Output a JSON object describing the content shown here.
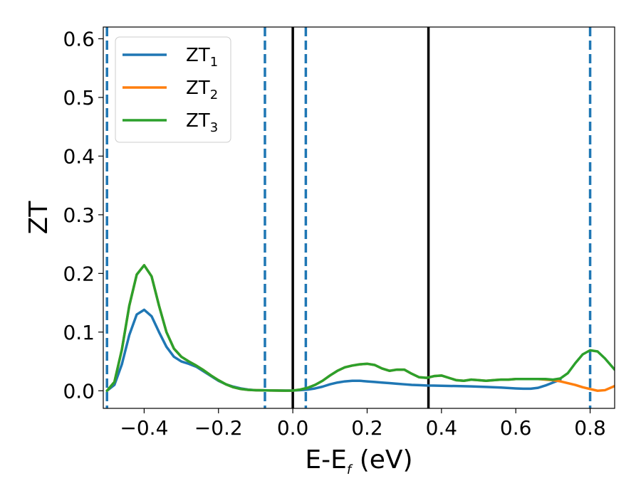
{
  "chart_data": {
    "type": "line",
    "xlabel_main": "E-E",
    "xlabel_sub": "f",
    "xlabel_unit": " (eV)",
    "ylabel": "ZT",
    "xlim": [
      -0.51,
      0.866
    ],
    "ylim": [
      -0.03,
      0.62
    ],
    "x_ticks": [
      -0.4,
      -0.2,
      0.0,
      0.2,
      0.4,
      0.6,
      0.8
    ],
    "x_tick_labels": [
      "−0.4",
      "−0.2",
      "0.0",
      "0.2",
      "0.4",
      "0.6",
      "0.8"
    ],
    "y_ticks": [
      0.0,
      0.1,
      0.2,
      0.3,
      0.4,
      0.5,
      0.6
    ],
    "y_tick_labels": [
      "0.0",
      "0.1",
      "0.2",
      "0.3",
      "0.4",
      "0.5",
      "0.6"
    ],
    "grid": false,
    "legend_position": "top-left",
    "legend_entries": [
      {
        "name_main": "ZT",
        "name_sub": "1",
        "color": "#1f77b4"
      },
      {
        "name_main": "ZT",
        "name_sub": "2",
        "color": "#ff7f0e"
      },
      {
        "name_main": "ZT",
        "name_sub": "3",
        "color": "#2ca02c"
      }
    ],
    "vertical_lines": [
      {
        "x": -0.5,
        "style": "dashed",
        "color": "#1f77b4"
      },
      {
        "x": -0.075,
        "style": "dashed",
        "color": "#1f77b4"
      },
      {
        "x": 0.035,
        "style": "dashed",
        "color": "#1f77b4"
      },
      {
        "x": 0.8,
        "style": "dashed",
        "color": "#1f77b4"
      },
      {
        "x": 0.0,
        "style": "solid",
        "color": "#000000"
      },
      {
        "x": 0.365,
        "style": "solid",
        "color": "#000000"
      }
    ],
    "series": [
      {
        "name": "ZT1",
        "color": "#1f77b4",
        "x": [
          -0.5,
          -0.48,
          -0.46,
          -0.44,
          -0.42,
          -0.4,
          -0.38,
          -0.36,
          -0.34,
          -0.32,
          -0.3,
          -0.28,
          -0.26,
          -0.24,
          -0.22,
          -0.2,
          -0.18,
          -0.16,
          -0.14,
          -0.12,
          -0.1,
          -0.08,
          -0.06,
          -0.04,
          -0.02,
          0.0,
          0.02,
          0.04,
          0.06,
          0.08,
          0.1,
          0.12,
          0.14,
          0.16,
          0.18,
          0.2,
          0.22,
          0.24,
          0.26,
          0.28,
          0.3,
          0.32,
          0.34,
          0.36,
          0.38,
          0.4,
          0.44,
          0.48,
          0.52,
          0.56,
          0.6,
          0.62,
          0.64,
          0.66,
          0.68,
          0.7,
          0.72
        ],
        "y": [
          0.0,
          0.01,
          0.045,
          0.095,
          0.13,
          0.138,
          0.127,
          0.1,
          0.075,
          0.058,
          0.05,
          0.046,
          0.041,
          0.033,
          0.025,
          0.017,
          0.011,
          0.007,
          0.004,
          0.002,
          0.001,
          0.0008,
          0.0006,
          0.0004,
          0.0003,
          0.0003,
          0.001,
          0.002,
          0.004,
          0.007,
          0.011,
          0.014,
          0.016,
          0.017,
          0.017,
          0.016,
          0.015,
          0.014,
          0.013,
          0.012,
          0.011,
          0.01,
          0.0095,
          0.009,
          0.0088,
          0.0085,
          0.008,
          0.0075,
          0.0065,
          0.0055,
          0.004,
          0.0035,
          0.0035,
          0.005,
          0.009,
          0.014,
          0.019
        ]
      },
      {
        "name": "ZT2",
        "color": "#ff7f0e",
        "x": [
          -0.5,
          -0.48,
          -0.46,
          -0.44,
          -0.42,
          -0.4,
          -0.38,
          -0.36,
          -0.34,
          -0.32,
          -0.3,
          -0.28,
          -0.26,
          -0.24,
          -0.22,
          -0.2,
          -0.18,
          -0.16,
          -0.14,
          -0.12,
          -0.1,
          -0.08,
          -0.06,
          -0.04,
          -0.02,
          0.0,
          0.02,
          0.04,
          0.06,
          0.08,
          0.1,
          0.12,
          0.14,
          0.16,
          0.18,
          0.2,
          0.22,
          0.24,
          0.26,
          0.28,
          0.3,
          0.32,
          0.34,
          0.36,
          0.38,
          0.4,
          0.42,
          0.44,
          0.46,
          0.48,
          0.5,
          0.52,
          0.54,
          0.56,
          0.58,
          0.6,
          0.62,
          0.64,
          0.66,
          0.68,
          0.7,
          0.72,
          0.74,
          0.76,
          0.78,
          0.8,
          0.82,
          0.84,
          0.866
        ],
        "y": [
          0.0,
          0.015,
          0.07,
          0.145,
          0.198,
          0.214,
          0.195,
          0.145,
          0.1,
          0.072,
          0.058,
          0.05,
          0.043,
          0.035,
          0.026,
          0.018,
          0.011,
          0.006,
          0.003,
          0.0015,
          0.001,
          0.0007,
          0.0005,
          0.0003,
          0.0002,
          0.0003,
          0.002,
          0.005,
          0.01,
          0.017,
          0.026,
          0.034,
          0.04,
          0.043,
          0.045,
          0.046,
          0.044,
          0.038,
          0.034,
          0.036,
          0.036,
          0.029,
          0.023,
          0.022,
          0.025,
          0.026,
          0.022,
          0.018,
          0.017,
          0.019,
          0.018,
          0.017,
          0.018,
          0.019,
          0.019,
          0.02,
          0.02,
          0.02,
          0.02,
          0.019,
          0.018,
          0.016,
          0.013,
          0.01,
          0.006,
          0.003,
          0.0,
          0.001,
          0.008
        ]
      },
      {
        "name": "ZT3",
        "color": "#2ca02c",
        "x": [
          -0.5,
          -0.48,
          -0.46,
          -0.44,
          -0.42,
          -0.4,
          -0.38,
          -0.36,
          -0.34,
          -0.32,
          -0.3,
          -0.28,
          -0.26,
          -0.24,
          -0.22,
          -0.2,
          -0.18,
          -0.16,
          -0.14,
          -0.12,
          -0.1,
          -0.08,
          -0.06,
          -0.04,
          -0.02,
          0.0,
          0.02,
          0.04,
          0.06,
          0.08,
          0.1,
          0.12,
          0.14,
          0.16,
          0.18,
          0.2,
          0.22,
          0.24,
          0.26,
          0.28,
          0.3,
          0.32,
          0.34,
          0.36,
          0.38,
          0.4,
          0.42,
          0.44,
          0.46,
          0.48,
          0.5,
          0.52,
          0.54,
          0.56,
          0.58,
          0.6,
          0.62,
          0.64,
          0.66,
          0.68,
          0.7,
          0.72,
          0.74,
          0.76,
          0.78,
          0.8,
          0.82,
          0.84,
          0.866
        ],
        "y": [
          0.0,
          0.015,
          0.07,
          0.145,
          0.198,
          0.214,
          0.195,
          0.145,
          0.1,
          0.072,
          0.058,
          0.05,
          0.043,
          0.035,
          0.026,
          0.018,
          0.011,
          0.006,
          0.003,
          0.0015,
          0.001,
          0.0007,
          0.0005,
          0.0003,
          0.0002,
          0.0003,
          0.002,
          0.005,
          0.01,
          0.017,
          0.026,
          0.034,
          0.04,
          0.043,
          0.045,
          0.046,
          0.044,
          0.038,
          0.034,
          0.036,
          0.036,
          0.029,
          0.023,
          0.022,
          0.025,
          0.026,
          0.022,
          0.018,
          0.017,
          0.019,
          0.018,
          0.017,
          0.018,
          0.019,
          0.019,
          0.02,
          0.02,
          0.02,
          0.02,
          0.02,
          0.019,
          0.021,
          0.03,
          0.047,
          0.062,
          0.069,
          0.067,
          0.055,
          0.036
        ]
      }
    ]
  }
}
